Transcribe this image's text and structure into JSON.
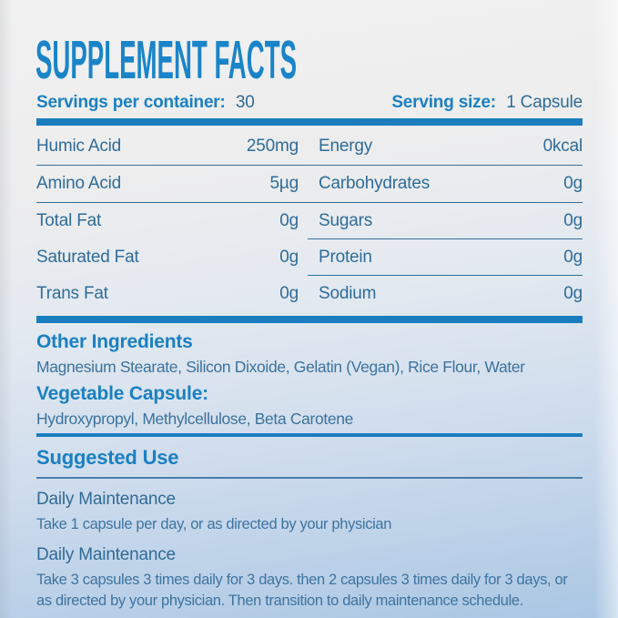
{
  "title": "SUPPLEMENT FACTS",
  "serving": {
    "servings_label": "Servings per container:",
    "servings_value": "30",
    "size_label": "Serving size:",
    "size_value": "1 Capsule"
  },
  "nutrients": {
    "rows": [
      {
        "left_name": "Humic Acid",
        "left_value": "250mg",
        "right_name": "Energy",
        "right_value": "0kcal"
      },
      {
        "left_name": "Amino Acid",
        "left_value": "5µg",
        "right_name": "Carbohydrates",
        "right_value": "0g"
      },
      {
        "left_name": "Total Fat",
        "left_value": "0g",
        "right_name": "Sugars",
        "right_value": "0g"
      },
      {
        "left_name": "Saturated Fat",
        "left_value": "0g",
        "right_name": "Protein",
        "right_value": "0g"
      },
      {
        "left_name": "Trans Fat",
        "left_value": "0g",
        "right_name": "Sodium",
        "right_value": "0g"
      }
    ]
  },
  "other_ingredients": {
    "heading": "Other Ingredients",
    "text": "Magnesium Stearate, Silicon Dixoide, Gelatin (Vegan), Rice Flour, Water",
    "capsule_heading": "Vegetable Capsule:",
    "capsule_text": "Hydroxypropyl, Methylcellulose, Beta Carotene"
  },
  "suggested_use": {
    "heading": "Suggested Use",
    "items": [
      {
        "title": "Daily Maintenance",
        "text": "Take 1 capsule per day, or as directed by your physician"
      },
      {
        "title": "Daily Maintenance",
        "text": "Take 3 capsules 3 times daily for 3 days. then 2 capsules 3 times daily for 3 days, or as directed by your physician. Then transition to daily maintenance schedule."
      }
    ]
  },
  "colors": {
    "accent_blue": "#1a80c2",
    "bar_blue": "#1a7dbf",
    "body_blue": "#2f6b96",
    "background_top": "#f1f1f1",
    "background_bottom": "#a9c6e3"
  }
}
